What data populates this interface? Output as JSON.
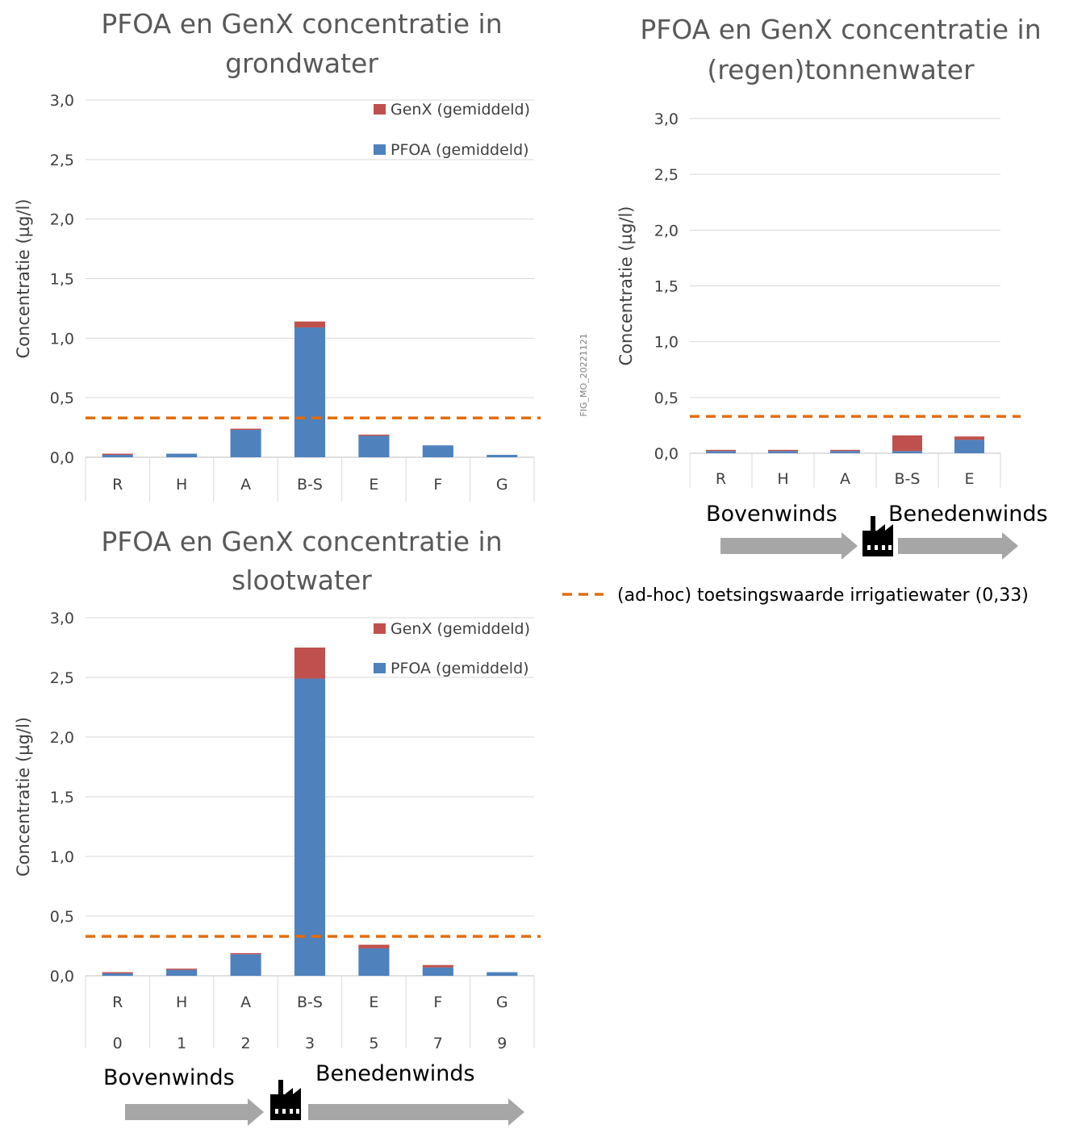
{
  "figure_id": "FIG_MO_20221121",
  "threshold_legend": "(ad-hoc) toetsingswaarde irrigatiewater (0,33)",
  "colors": {
    "pfoa": "#4F81BD",
    "genx": "#C0504D",
    "threshold": "#E36C09",
    "arrow": "#A6A6A6",
    "grid": "#D9D9D9",
    "axis": "#BFBFBF"
  },
  "chart_data": [
    {
      "id": "grondwater",
      "type": "bar",
      "stacked": true,
      "title": "PFOA en GenX concentratie in grondwater",
      "title_lines": [
        "PFOA en GenX concentratie in",
        "grondwater"
      ],
      "ylabel": "Concentratie (µg/l)",
      "ylim": [
        0,
        3.0
      ],
      "yticks": [
        "0,0",
        "0,5",
        "1,0",
        "1,5",
        "2,0",
        "2,5",
        "3,0"
      ],
      "categories": [
        "R",
        "H",
        "A",
        "B-S",
        "E",
        "F",
        "G"
      ],
      "series": [
        {
          "name": "PFOA (gemiddeld)",
          "values": [
            0.02,
            0.03,
            0.23,
            1.09,
            0.18,
            0.1,
            0.02
          ]
        },
        {
          "name": "GenX (gemiddeld)",
          "values": [
            0.01,
            0.0,
            0.01,
            0.05,
            0.01,
            0.0,
            0.0
          ]
        }
      ],
      "threshold": 0.33,
      "legend_position": "top-right",
      "grid": true
    },
    {
      "id": "regentonnenwater",
      "type": "bar",
      "stacked": true,
      "title": "PFOA en GenX concentratie in (regen)tonnenwater",
      "title_lines": [
        "PFOA en GenX concentratie in",
        "(regen)tonnenwater"
      ],
      "ylabel": "Concentratie (µg/l)",
      "ylim": [
        0,
        3.0
      ],
      "yticks": [
        "0,0",
        "0,5",
        "1,0",
        "1,5",
        "2,0",
        "2,5",
        "3,0"
      ],
      "categories": [
        "R",
        "H",
        "A",
        "B-S",
        "E"
      ],
      "series": [
        {
          "name": "PFOA (gemiddeld)",
          "values": [
            0.02,
            0.02,
            0.02,
            0.02,
            0.12
          ]
        },
        {
          "name": "GenX (gemiddeld)",
          "values": [
            0.01,
            0.01,
            0.01,
            0.14,
            0.03
          ]
        }
      ],
      "threshold": 0.33,
      "grid": true
    },
    {
      "id": "slootwater",
      "type": "bar",
      "stacked": true,
      "title": "PFOA en GenX concentratie in slootwater",
      "title_lines": [
        "PFOA en GenX concentratie in",
        "slootwater"
      ],
      "ylabel": "Concentratie (µg/l)",
      "ylim": [
        0,
        3.0
      ],
      "yticks": [
        "0,0",
        "0,5",
        "1,0",
        "1,5",
        "2,0",
        "2,5",
        "3,0"
      ],
      "categories": [
        "R",
        "H",
        "A",
        "B-S",
        "E",
        "F",
        "G"
      ],
      "sub_categories": [
        "0",
        "1",
        "2",
        "3",
        "5",
        "7",
        "9"
      ],
      "series": [
        {
          "name": "PFOA (gemiddeld)",
          "values": [
            0.02,
            0.05,
            0.18,
            2.49,
            0.23,
            0.07,
            0.03
          ]
        },
        {
          "name": "GenX (gemiddeld)",
          "values": [
            0.01,
            0.01,
            0.01,
            0.26,
            0.03,
            0.02,
            0.0
          ]
        }
      ],
      "threshold": 0.33,
      "legend_position": "top-right",
      "grid": true
    }
  ],
  "wind_labels": {
    "upwind": "Bovenwinds",
    "downwind": "Benedenwinds"
  }
}
